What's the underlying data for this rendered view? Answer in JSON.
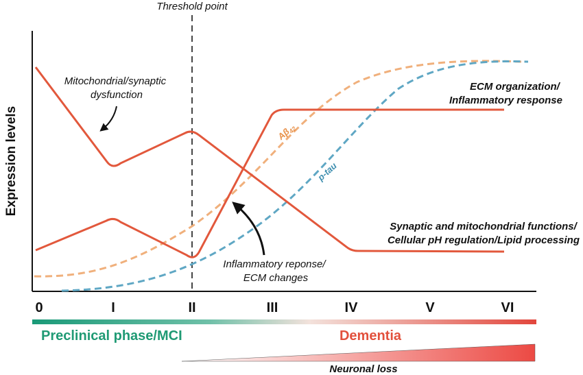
{
  "threshold": "Threshold point",
  "y_axis_label": "Expression levels",
  "stages": [
    "0",
    "I",
    "II",
    "III",
    "IV",
    "V",
    "VI"
  ],
  "annotations": {
    "mito": [
      "Mitochondrial/synaptic",
      "dysfunction"
    ],
    "ecm": [
      "ECM organization/",
      "Inflammatory response"
    ],
    "abeta": {
      "label": "Aβ",
      "subscript": "42"
    },
    "ptau": "p-tau",
    "synaptic": [
      "Synaptic and mitochondrial functions/",
      "Cellular pH regulation/Lipid processing"
    ],
    "inflammatory": [
      "Inflammatory reponse/",
      "ECM changes"
    ]
  },
  "phases": {
    "preclinical": "Preclinical phase/MCI",
    "dementia": "Dementia"
  },
  "neuronal_loss": "Neuronal loss"
}
